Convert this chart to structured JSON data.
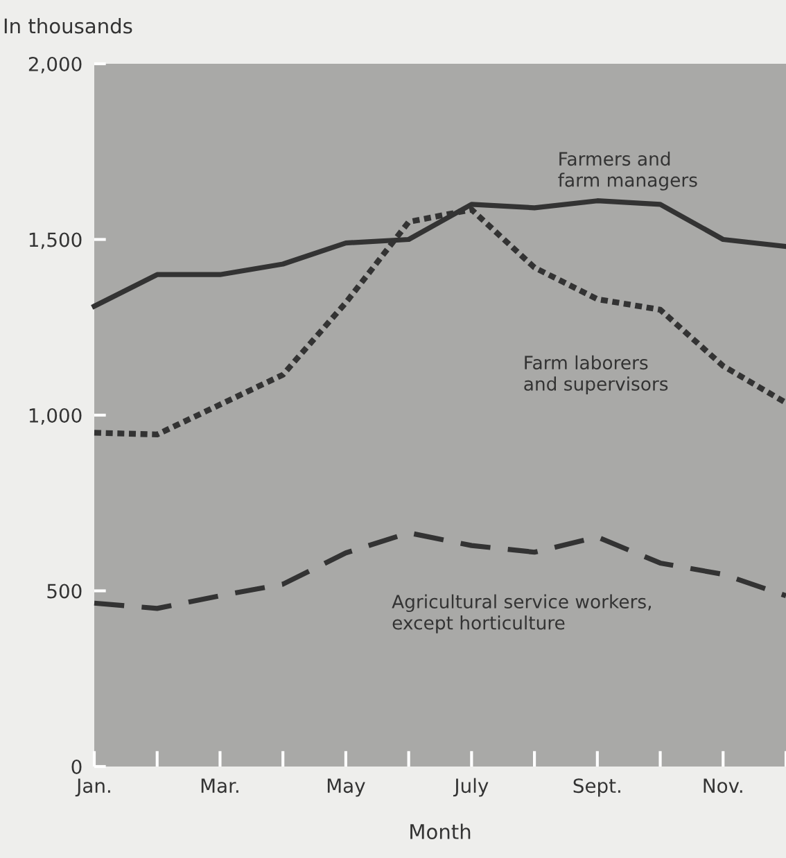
{
  "chart_data": {
    "type": "line",
    "ylabel": "In thousands",
    "xlabel": "Month",
    "categories": [
      "Jan.",
      null,
      "Mar.",
      null,
      "May",
      null,
      "July",
      null,
      "Sept.",
      null,
      "Nov.",
      null
    ],
    "series": [
      {
        "name": "Farmers and farm managers",
        "color": "#333333",
        "line_style": "solid",
        "values": [
          1310,
          1400,
          1400,
          1430,
          1490,
          1500,
          1600,
          1590,
          1610,
          1600,
          1500,
          1480
        ]
      },
      {
        "name": "Farm laborers and supervisors",
        "color": "#333333",
        "line_style": "dotted",
        "values": [
          950,
          945,
          1030,
          1115,
          1320,
          1550,
          1585,
          1420,
          1330,
          1300,
          1140,
          1035
        ]
      },
      {
        "name": "Agricultural service workers, except horticulture",
        "color": "#333333",
        "line_style": "dashed",
        "values": [
          465,
          450,
          486,
          519,
          608,
          665,
          629,
          610,
          653,
          579,
          547,
          486
        ]
      }
    ],
    "ylim": [
      0,
      2000
    ],
    "yticks": [
      0,
      500,
      {
        "value": 1000,
        "label": "1,000"
      },
      {
        "value": 1500,
        "label": "1,500"
      },
      {
        "value": 2000,
        "label": "2,000"
      }
    ],
    "grid": false,
    "legend": false,
    "marker": "none"
  }
}
